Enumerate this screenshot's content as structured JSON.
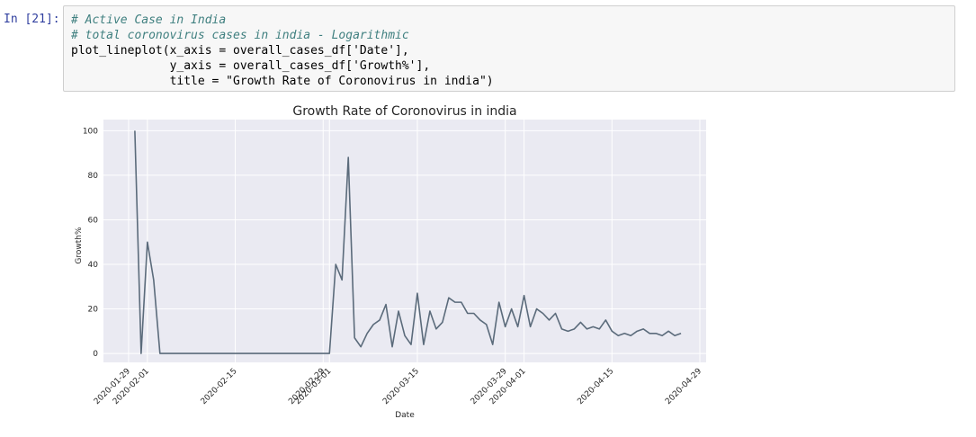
{
  "prompt": "In [21]:",
  "code": {
    "lines": [
      {
        "text": "# Active Case in India",
        "comment": true
      },
      {
        "text": "# total coronovirus cases in india - Logarithmic",
        "comment": true
      },
      {
        "text": "plot_lineplot(x_axis = overall_cases_df['Date'],",
        "comment": false
      },
      {
        "text": "              y_axis = overall_cases_df['Growth%'],",
        "comment": false
      },
      {
        "text": "              title = \"Growth Rate of Coronovirus in india\")",
        "comment": false
      }
    ]
  },
  "colors": {
    "line": "#5b6b7b",
    "plot_bg": "#eaeaf2",
    "grid": "#ffffff"
  },
  "chart_data": {
    "type": "line",
    "title": "Growth Rate of Coronovirus in india",
    "xlabel": "Date",
    "ylabel": "Growth%",
    "ylim": [
      -4,
      105
    ],
    "xlim": [
      "2020-01-25",
      "2020-04-30"
    ],
    "grid": true,
    "yticks": [
      0,
      20,
      40,
      60,
      80,
      100
    ],
    "xticks": [
      "2020-01-29",
      "2020-02-01",
      "2020-02-15",
      "2020-02-29",
      "2020-03-01",
      "2020-03-15",
      "2020-03-29",
      "2020-04-01",
      "2020-04-15",
      "2020-04-29"
    ],
    "series": [
      {
        "x": [
          "2020-01-30",
          "2020-01-31",
          "2020-02-01",
          "2020-02-02",
          "2020-02-03",
          "2020-02-04",
          "2020-02-05",
          "2020-02-06",
          "2020-02-07",
          "2020-02-08",
          "2020-02-09",
          "2020-02-10",
          "2020-02-11",
          "2020-02-12",
          "2020-02-13",
          "2020-02-14",
          "2020-02-15",
          "2020-02-16",
          "2020-02-17",
          "2020-02-18",
          "2020-02-19",
          "2020-02-20",
          "2020-02-21",
          "2020-02-22",
          "2020-02-23",
          "2020-02-24",
          "2020-02-25",
          "2020-02-26",
          "2020-02-27",
          "2020-02-28",
          "2020-02-29",
          "2020-03-01",
          "2020-03-02",
          "2020-03-03",
          "2020-03-04",
          "2020-03-05",
          "2020-03-06",
          "2020-03-07",
          "2020-03-08",
          "2020-03-09",
          "2020-03-10",
          "2020-03-11",
          "2020-03-12",
          "2020-03-13",
          "2020-03-14",
          "2020-03-15",
          "2020-03-16",
          "2020-03-17",
          "2020-03-18",
          "2020-03-19",
          "2020-03-20",
          "2020-03-21",
          "2020-03-22",
          "2020-03-23",
          "2020-03-24",
          "2020-03-25",
          "2020-03-26",
          "2020-03-27",
          "2020-03-28",
          "2020-03-29",
          "2020-03-30",
          "2020-03-31",
          "2020-04-01",
          "2020-04-02",
          "2020-04-03",
          "2020-04-04",
          "2020-04-05",
          "2020-04-06",
          "2020-04-07",
          "2020-04-08",
          "2020-04-09",
          "2020-04-10",
          "2020-04-11",
          "2020-04-12",
          "2020-04-13",
          "2020-04-14",
          "2020-04-15",
          "2020-04-16",
          "2020-04-17",
          "2020-04-18",
          "2020-04-19",
          "2020-04-20",
          "2020-04-21",
          "2020-04-22",
          "2020-04-23",
          "2020-04-24",
          "2020-04-25",
          "2020-04-26"
        ],
        "values": [
          100,
          0,
          50,
          33,
          0,
          0,
          0,
          0,
          0,
          0,
          0,
          0,
          0,
          0,
          0,
          0,
          0,
          0,
          0,
          0,
          0,
          0,
          0,
          0,
          0,
          0,
          0,
          0,
          0,
          0,
          0,
          0,
          40,
          33,
          88,
          7,
          3,
          9,
          13,
          15,
          22,
          3,
          19,
          8,
          4,
          27,
          4,
          19,
          11,
          14,
          25,
          23,
          23,
          18,
          18,
          15,
          13,
          4,
          23,
          12,
          20,
          12,
          26,
          12,
          20,
          18,
          15,
          18,
          11,
          10,
          11,
          14,
          11,
          12,
          11,
          15,
          10,
          8,
          9,
          8,
          10,
          11,
          9,
          9,
          8,
          10,
          8,
          9
        ]
      }
    ]
  }
}
